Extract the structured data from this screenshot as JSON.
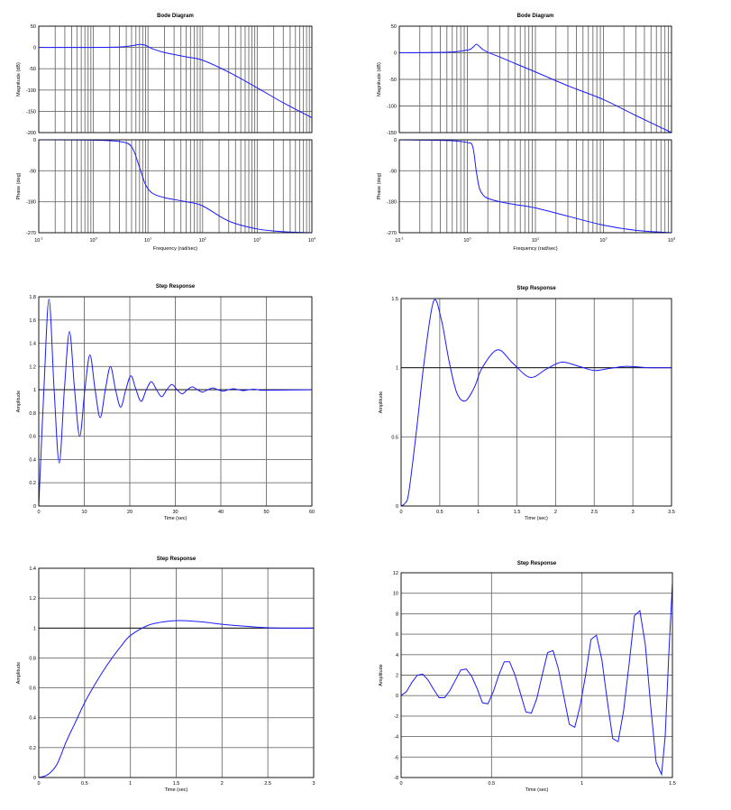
{
  "chart_data": [
    {
      "type": "bode",
      "title": "Bode Diagram",
      "xlabel": "Frequency  (rad/sec)",
      "xscale": "log",
      "grid": true,
      "smooth": true,
      "x": [
        0.1,
        1,
        3,
        5,
        7,
        9,
        12,
        20,
        50,
        100,
        300,
        1000,
        3000,
        10000
      ],
      "xlim": [
        0.1,
        10000
      ],
      "xticks": [
        {
          "value": 0.1,
          "label": "10",
          "exponent": "-1"
        },
        {
          "value": 1,
          "label": "10",
          "exponent": "0"
        },
        {
          "value": 10,
          "label": "10",
          "exponent": "1"
        },
        {
          "value": 100,
          "label": "10",
          "exponent": "2"
        },
        {
          "value": 1000,
          "label": "10",
          "exponent": "3"
        },
        {
          "value": 10000,
          "label": "10",
          "exponent": "4"
        }
      ],
      "panels": [
        {
          "ylabel": "Magnitude (dB)",
          "ylim": [
            -200,
            50
          ],
          "yticks": [
            50,
            0,
            -50,
            -100,
            -150,
            -200
          ],
          "series": [
            {
              "color": "#1a1aff",
              "values": [
                0,
                0,
                1,
                4,
                7,
                5,
                -3,
                -12,
                -22,
                -30,
                -58,
                -95,
                -130,
                -165
              ]
            }
          ]
        },
        {
          "ylabel": "Phase (deg)",
          "ylim": [
            -270,
            0
          ],
          "yticks": [
            0,
            -90,
            -180,
            -270
          ],
          "series": [
            {
              "color": "#1a1aff",
              "values": [
                0,
                -1,
                -5,
                -20,
                -80,
                -130,
                -155,
                -168,
                -180,
                -192,
                -236,
                -259,
                -267,
                -270
              ]
            }
          ]
        }
      ]
    },
    {
      "type": "bode",
      "title": "Bode Diagram",
      "xlabel": "Frequency  (rad/sec)",
      "xscale": "log",
      "grid": true,
      "smooth": true,
      "x": [
        0.1,
        0.5,
        1,
        1.2,
        1.35,
        1.5,
        1.7,
        2,
        3,
        5,
        10,
        30,
        100,
        300,
        1000
      ],
      "xlim": [
        0.1,
        1000
      ],
      "xticks": [
        {
          "value": 0.1,
          "label": "10",
          "exponent": "-1"
        },
        {
          "value": 1,
          "label": "10",
          "exponent": "0"
        },
        {
          "value": 10,
          "label": "10",
          "exponent": "1"
        },
        {
          "value": 100,
          "label": "10",
          "exponent": "2"
        },
        {
          "value": 1000,
          "label": "10",
          "exponent": "3"
        }
      ],
      "panels": [
        {
          "ylabel": "Magnitude (dB)",
          "ylim": [
            -150,
            50
          ],
          "yticks": [
            50,
            0,
            -50,
            -100,
            -150
          ],
          "series": [
            {
              "color": "#1a1aff",
              "values": [
                0,
                1,
                5,
                10,
                16,
                12,
                6,
                1,
                -8,
                -20,
                -36,
                -62,
                -88,
                -118,
                -150
              ]
            }
          ]
        },
        {
          "ylabel": "Phase (deg)",
          "ylim": [
            -270,
            0
          ],
          "yticks": [
            0,
            -90,
            -180,
            -270
          ],
          "series": [
            {
              "color": "#1a1aff",
              "values": [
                0,
                -2,
                -8,
                -20,
                -90,
                -140,
                -160,
                -170,
                -180,
                -188,
                -198,
                -222,
                -248,
                -263,
                -270
              ]
            }
          ]
        }
      ]
    },
    {
      "type": "line",
      "title": "Step Response",
      "xlabel": "Time (sec)",
      "ylabel": "Amplitude",
      "grid": true,
      "smooth": true,
      "reference_line": 1,
      "x": [
        0,
        1.125,
        2.25,
        3.375,
        4.5,
        5.625,
        6.75,
        7.875,
        9,
        10.125,
        11.25,
        12.375,
        13.5,
        14.625,
        15.75,
        16.875,
        18,
        19.125,
        20.25,
        21.375,
        22.5,
        23.625,
        24.75,
        25.875,
        27,
        28.125,
        29.25,
        30.375,
        31.5,
        32.625,
        33.75,
        34.875,
        36,
        37.125,
        38.25,
        39.375,
        40.5,
        41.625,
        42.75,
        43.875,
        45,
        46.125,
        47.25,
        48.375,
        49.5,
        60
      ],
      "xlim": [
        0,
        60
      ],
      "xticks": [
        0,
        10,
        20,
        30,
        40,
        50,
        60
      ],
      "ylim": [
        0,
        1.8
      ],
      "yticks": [
        0,
        0.2,
        0.4,
        0.6,
        0.8,
        1,
        1.2,
        1.4,
        1.6,
        1.8
      ],
      "series": [
        {
          "color": "#1a1aff",
          "values": [
            0,
            1,
            1.78,
            1,
            0.37,
            1,
            1.5,
            1,
            0.6,
            1,
            1.3,
            1,
            0.76,
            1,
            1.2,
            1,
            0.85,
            1,
            1.12,
            1,
            0.9,
            1,
            1.07,
            1,
            0.94,
            1,
            1.045,
            1,
            0.965,
            1,
            1.025,
            1,
            0.98,
            1,
            1.015,
            1,
            0.988,
            1,
            1.009,
            1,
            0.993,
            1,
            1.005,
            1,
            0.996,
            1
          ]
        }
      ]
    },
    {
      "type": "line",
      "title": "Step Response",
      "xlabel": "Time (sec)",
      "ylabel": "Amplitude",
      "grid": true,
      "smooth": true,
      "reference_line": 1,
      "x": [
        0,
        0.05,
        0.1,
        0.2,
        0.3,
        0.42,
        0.52,
        0.62,
        0.72,
        0.83,
        0.95,
        1.05,
        1.25,
        1.45,
        1.67,
        1.88,
        2.08,
        2.3,
        2.5,
        2.7,
        2.92,
        3.2,
        3.5
      ],
      "xlim": [
        0,
        3.5
      ],
      "xticks": [
        0,
        0.5,
        1,
        1.5,
        2,
        2.5,
        3,
        3.5
      ],
      "ylim": [
        0,
        1.5
      ],
      "yticks": [
        0,
        0.5,
        1,
        1.5
      ],
      "series": [
        {
          "color": "#1a1aff",
          "values": [
            0,
            0.02,
            0.1,
            0.55,
            1.05,
            1.48,
            1.35,
            1.05,
            0.82,
            0.76,
            0.86,
            1,
            1.13,
            1.03,
            0.93,
            0.99,
            1.04,
            1.01,
            0.98,
            0.995,
            1.01,
            1,
            1
          ]
        }
      ]
    },
    {
      "type": "line",
      "title": "Step Response",
      "xlabel": "Time (sec)",
      "ylabel": "Amplitude",
      "grid": true,
      "smooth": true,
      "reference_line": 1,
      "x": [
        0,
        0.1,
        0.2,
        0.3,
        0.4,
        0.5,
        0.6,
        0.7,
        0.8,
        0.9,
        1,
        1.2,
        1.4,
        1.55,
        1.8,
        2,
        2.3,
        2.6,
        3
      ],
      "xlim": [
        0,
        3
      ],
      "xticks": [
        0,
        0.5,
        1,
        1.5,
        2,
        2.5,
        3
      ],
      "ylim": [
        0,
        1.4
      ],
      "yticks": [
        0,
        0.2,
        0.4,
        0.6,
        0.8,
        1,
        1.2,
        1.4
      ],
      "series": [
        {
          "color": "#1a1aff",
          "values": [
            0,
            0.02,
            0.09,
            0.24,
            0.37,
            0.5,
            0.61,
            0.71,
            0.8,
            0.88,
            0.95,
            1.02,
            1.045,
            1.05,
            1.04,
            1.025,
            1.01,
            1,
            1
          ]
        }
      ]
    },
    {
      "type": "line",
      "title": "Step Response",
      "xlabel": "Time (sec)",
      "ylabel": "Amplitude",
      "grid": true,
      "smooth": false,
      "x": [
        0,
        0.03,
        0.06,
        0.09,
        0.12,
        0.15,
        0.18,
        0.21,
        0.24,
        0.27,
        0.3,
        0.33,
        0.36,
        0.39,
        0.42,
        0.45,
        0.48,
        0.51,
        0.54,
        0.57,
        0.6,
        0.63,
        0.66,
        0.69,
        0.72,
        0.75,
        0.78,
        0.81,
        0.84,
        0.87,
        0.9,
        0.93,
        0.96,
        0.99,
        1.02,
        1.05,
        1.08,
        1.11,
        1.14,
        1.17,
        1.2,
        1.23,
        1.26,
        1.29,
        1.32,
        1.35,
        1.38,
        1.41,
        1.44,
        1.46,
        1.48,
        1.5
      ],
      "xlim": [
        0,
        1.5
      ],
      "xticks": [
        0,
        0.5,
        1,
        1.5
      ],
      "ylim": [
        -8,
        12
      ],
      "yticks": [
        -8,
        -6,
        -4,
        -2,
        0,
        2,
        4,
        6,
        8,
        10,
        12
      ],
      "series": [
        {
          "color": "#1a1aff",
          "values": [
            0,
            0.4,
            1.3,
            2,
            2.1,
            1.5,
            0.6,
            -0.2,
            -0.2,
            0.5,
            1.5,
            2.5,
            2.6,
            1.9,
            0.7,
            -0.7,
            -0.8,
            0.4,
            2,
            3.3,
            3.3,
            2,
            0.2,
            -1.6,
            -1.7,
            -0.3,
            2,
            4.2,
            4.4,
            2.6,
            -0.1,
            -2.8,
            -3.1,
            -1,
            2,
            5.5,
            5.9,
            3.5,
            -0.5,
            -4.2,
            -4.5,
            -1.5,
            3,
            7.8,
            8.3,
            5,
            -1,
            -6.5,
            -7.7,
            -4,
            4,
            11
          ]
        }
      ]
    }
  ]
}
